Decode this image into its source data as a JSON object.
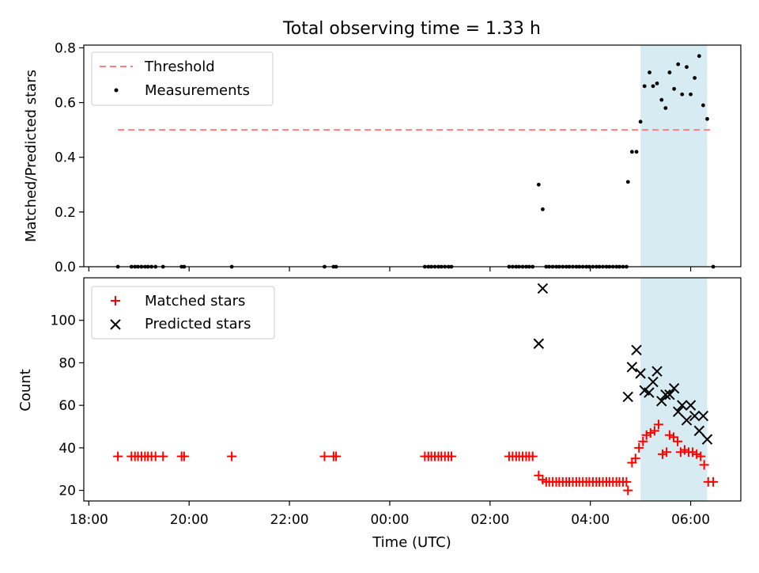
{
  "chart_data": {
    "type": "scatter",
    "title": "Total observing time = 1.33 h",
    "xlabel": "Time (UTC)",
    "x_unit": "hours from 18:00 UTC",
    "xlim": [
      -0.1,
      13
    ],
    "x_ticks": [
      {
        "x": 0,
        "label": "18:00"
      },
      {
        "x": 2,
        "label": "20:00"
      },
      {
        "x": 4,
        "label": "22:00"
      },
      {
        "x": 6,
        "label": "00:00"
      },
      {
        "x": 8,
        "label": "02:00"
      },
      {
        "x": 10,
        "label": "04:00"
      },
      {
        "x": 12,
        "label": "06:00"
      }
    ],
    "shaded_interval": {
      "start": 11.0,
      "end": 12.33,
      "color": "#add8e6"
    },
    "panels": [
      {
        "ylabel": "Matched/Predicted stars",
        "ylim": [
          0,
          0.81
        ],
        "y_ticks": [
          0.0,
          0.2,
          0.4,
          0.6,
          0.8
        ],
        "y_tick_labels": [
          "0.0",
          "0.2",
          "0.4",
          "0.6",
          "0.8"
        ],
        "legend": [
          {
            "label": "Threshold",
            "marker": "dashed-line",
            "color": "#ff7f7f"
          },
          {
            "label": "Measurements",
            "marker": "dot",
            "color": "#000000"
          }
        ],
        "threshold": {
          "value": 0.5,
          "x_start": 0.58,
          "x_end": 12.45,
          "color": "#ff7f7f"
        },
        "series": [
          {
            "name": "Measurements",
            "marker": "dot",
            "color": "#000000",
            "points": [
              [
                0.58,
                0
              ],
              [
                0.85,
                0
              ],
              [
                0.92,
                0
              ],
              [
                0.98,
                0
              ],
              [
                1.05,
                0
              ],
              [
                1.12,
                0
              ],
              [
                1.18,
                0
              ],
              [
                1.25,
                0
              ],
              [
                1.33,
                0
              ],
              [
                1.48,
                0
              ],
              [
                1.85,
                0
              ],
              [
                1.9,
                0
              ],
              [
                2.85,
                0
              ],
              [
                4.7,
                0
              ],
              [
                4.88,
                0
              ],
              [
                4.93,
                0
              ],
              [
                6.7,
                0
              ],
              [
                6.77,
                0
              ],
              [
                6.83,
                0
              ],
              [
                6.9,
                0
              ],
              [
                6.97,
                0
              ],
              [
                7.03,
                0
              ],
              [
                7.1,
                0
              ],
              [
                7.17,
                0
              ],
              [
                7.23,
                0
              ],
              [
                8.38,
                0
              ],
              [
                8.45,
                0
              ],
              [
                8.52,
                0
              ],
              [
                8.58,
                0
              ],
              [
                8.65,
                0
              ],
              [
                8.72,
                0
              ],
              [
                8.78,
                0
              ],
              [
                8.85,
                0
              ],
              [
                8.97,
                0.3
              ],
              [
                9.05,
                0.21
              ],
              [
                9.12,
                0
              ],
              [
                9.18,
                0
              ],
              [
                9.25,
                0
              ],
              [
                9.32,
                0
              ],
              [
                9.38,
                0
              ],
              [
                9.45,
                0
              ],
              [
                9.52,
                0
              ],
              [
                9.58,
                0
              ],
              [
                9.65,
                0
              ],
              [
                9.72,
                0
              ],
              [
                9.78,
                0
              ],
              [
                9.85,
                0
              ],
              [
                9.92,
                0
              ],
              [
                9.98,
                0
              ],
              [
                10.05,
                0
              ],
              [
                10.12,
                0
              ],
              [
                10.18,
                0
              ],
              [
                10.25,
                0
              ],
              [
                10.32,
                0
              ],
              [
                10.38,
                0
              ],
              [
                10.45,
                0
              ],
              [
                10.52,
                0
              ],
              [
                10.58,
                0
              ],
              [
                10.65,
                0
              ],
              [
                10.72,
                0
              ],
              [
                10.75,
                0.31
              ],
              [
                10.83,
                0.42
              ],
              [
                10.92,
                0.42
              ],
              [
                11.0,
                0.53
              ],
              [
                11.08,
                0.66
              ],
              [
                11.18,
                0.71
              ],
              [
                11.25,
                0.66
              ],
              [
                11.33,
                0.67
              ],
              [
                11.42,
                0.61
              ],
              [
                11.5,
                0.58
              ],
              [
                11.58,
                0.71
              ],
              [
                11.67,
                0.65
              ],
              [
                11.75,
                0.74
              ],
              [
                11.83,
                0.63
              ],
              [
                11.92,
                0.73
              ],
              [
                12.0,
                0.63
              ],
              [
                12.08,
                0.69
              ],
              [
                12.17,
                0.77
              ],
              [
                12.25,
                0.59
              ],
              [
                12.33,
                0.54
              ],
              [
                12.45,
                0
              ]
            ]
          }
        ]
      },
      {
        "ylabel": "Count",
        "ylim": [
          15,
          120
        ],
        "y_ticks": [
          20,
          40,
          60,
          80,
          100
        ],
        "y_tick_labels": [
          "20",
          "40",
          "60",
          "80",
          "100"
        ],
        "legend": [
          {
            "label": "Matched stars",
            "marker": "plus",
            "color": "#ff0000"
          },
          {
            "label": "Predicted stars",
            "marker": "x",
            "color": "#000000"
          }
        ],
        "series": [
          {
            "name": "Matched stars",
            "marker": "plus",
            "color": "#ff0000",
            "points": [
              [
                0.58,
                36
              ],
              [
                0.85,
                36
              ],
              [
                0.92,
                36
              ],
              [
                0.98,
                36
              ],
              [
                1.05,
                36
              ],
              [
                1.12,
                36
              ],
              [
                1.18,
                36
              ],
              [
                1.25,
                36
              ],
              [
                1.33,
                36
              ],
              [
                1.48,
                36
              ],
              [
                1.85,
                36
              ],
              [
                1.9,
                36
              ],
              [
                2.85,
                36
              ],
              [
                4.7,
                36
              ],
              [
                4.88,
                36
              ],
              [
                4.93,
                36
              ],
              [
                6.7,
                36
              ],
              [
                6.77,
                36
              ],
              [
                6.83,
                36
              ],
              [
                6.9,
                36
              ],
              [
                6.97,
                36
              ],
              [
                7.03,
                36
              ],
              [
                7.1,
                36
              ],
              [
                7.17,
                36
              ],
              [
                7.23,
                36
              ],
              [
                8.38,
                36
              ],
              [
                8.45,
                36
              ],
              [
                8.52,
                36
              ],
              [
                8.58,
                36
              ],
              [
                8.65,
                36
              ],
              [
                8.72,
                36
              ],
              [
                8.78,
                36
              ],
              [
                8.85,
                36
              ],
              [
                8.97,
                27
              ],
              [
                9.05,
                25
              ],
              [
                9.12,
                24
              ],
              [
                9.18,
                24
              ],
              [
                9.25,
                24
              ],
              [
                9.32,
                24
              ],
              [
                9.38,
                24
              ],
              [
                9.45,
                24
              ],
              [
                9.52,
                24
              ],
              [
                9.58,
                24
              ],
              [
                9.65,
                24
              ],
              [
                9.72,
                24
              ],
              [
                9.78,
                24
              ],
              [
                9.85,
                24
              ],
              [
                9.92,
                24
              ],
              [
                9.98,
                24
              ],
              [
                10.05,
                24
              ],
              [
                10.12,
                24
              ],
              [
                10.18,
                24
              ],
              [
                10.25,
                24
              ],
              [
                10.32,
                24
              ],
              [
                10.38,
                24
              ],
              [
                10.45,
                24
              ],
              [
                10.52,
                24
              ],
              [
                10.58,
                24
              ],
              [
                10.65,
                24
              ],
              [
                10.72,
                24
              ],
              [
                10.75,
                20
              ],
              [
                10.83,
                33
              ],
              [
                10.9,
                35
              ],
              [
                10.97,
                40
              ],
              [
                11.05,
                43
              ],
              [
                11.12,
                46
              ],
              [
                11.2,
                47
              ],
              [
                11.28,
                48
              ],
              [
                11.36,
                51
              ],
              [
                11.44,
                37
              ],
              [
                11.52,
                38
              ],
              [
                11.58,
                46
              ],
              [
                11.66,
                45
              ],
              [
                11.74,
                43
              ],
              [
                11.8,
                38
              ],
              [
                11.88,
                39
              ],
              [
                11.96,
                38
              ],
              [
                12.04,
                38
              ],
              [
                12.12,
                37
              ],
              [
                12.2,
                36
              ],
              [
                12.27,
                32
              ],
              [
                12.35,
                24
              ],
              [
                12.45,
                24
              ]
            ]
          },
          {
            "name": "Predicted stars",
            "marker": "x",
            "color": "#000000",
            "points": [
              [
                8.97,
                89
              ],
              [
                9.05,
                115
              ],
              [
                10.75,
                64
              ],
              [
                10.83,
                78
              ],
              [
                10.92,
                86
              ],
              [
                11.0,
                75
              ],
              [
                11.08,
                67
              ],
              [
                11.17,
                66
              ],
              [
                11.25,
                71
              ],
              [
                11.33,
                76
              ],
              [
                11.42,
                62
              ],
              [
                11.5,
                65
              ],
              [
                11.58,
                65
              ],
              [
                11.67,
                68
              ],
              [
                11.75,
                57
              ],
              [
                11.83,
                60
              ],
              [
                11.92,
                53
              ],
              [
                12.0,
                60
              ],
              [
                12.08,
                55
              ],
              [
                12.17,
                48
              ],
              [
                12.25,
                55
              ],
              [
                12.33,
                44
              ]
            ]
          }
        ]
      }
    ]
  }
}
